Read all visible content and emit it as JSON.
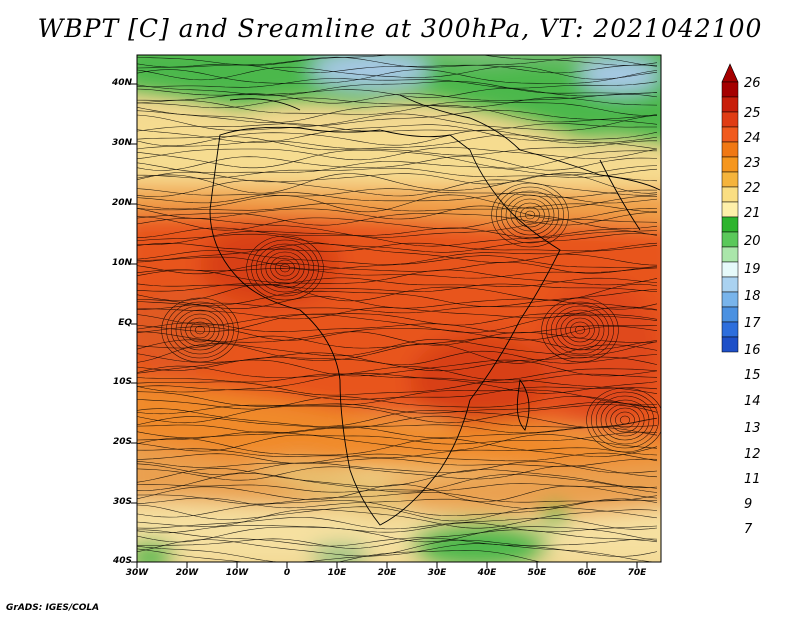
{
  "title": "WBPT [C] and Sreamline at 300hPa, VT: 2021042100",
  "credit": "GrADS: IGES/COLA",
  "map": {
    "lat_labels": [
      "40N",
      "30N",
      "20N",
      "10N",
      "EQ",
      "10S",
      "20S",
      "30S",
      "40S"
    ],
    "lon_labels": [
      "30W",
      "20W",
      "10W",
      "0",
      "10E",
      "20E",
      "30E",
      "40E",
      "50E",
      "60E",
      "70E"
    ],
    "lon_range": [
      -30,
      75
    ],
    "lat_range": [
      -40,
      45
    ]
  },
  "colorbar": {
    "labels": [
      "26",
      "25",
      "24",
      "23",
      "22",
      "21",
      "20",
      "19",
      "18",
      "17",
      "16",
      "15",
      "14",
      "13",
      "12",
      "11",
      "9",
      "7"
    ],
    "colors": [
      "#a50000",
      "#c81e0a",
      "#e03c14",
      "#f05a1e",
      "#f07814",
      "#f5961e",
      "#f5b43c",
      "#fade82",
      "#fff0aa",
      "#2eb42e",
      "#5ac85a",
      "#aae6aa",
      "#e6fafa",
      "#aad2f0",
      "#78b4eb",
      "#4b91e1",
      "#2d6edc",
      "#1e50c8"
    ]
  }
}
